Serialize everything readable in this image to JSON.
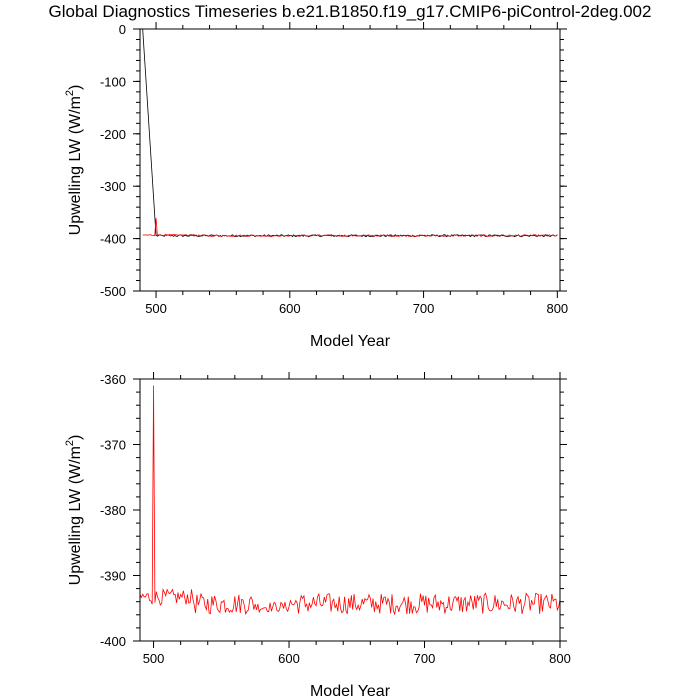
{
  "title": "Global Diagnostics Timeseries b.e21.B1850.f19_g17.CMIP6-piControl-2deg.002",
  "colors": {
    "series_black": "#000000",
    "series_red": "#ff0000",
    "axes": "#000000"
  },
  "chart_data": [
    {
      "type": "line",
      "title": "",
      "xlabel": "Model Year",
      "ylabel_main": "Upwelling LW (W/m",
      "ylabel_sup": "2",
      "ylabel_close": ")",
      "xlim": [
        488,
        802
      ],
      "ylim": [
        -500,
        0
      ],
      "xticks": [
        500,
        600,
        700,
        800
      ],
      "yticks": [
        0,
        -100,
        -200,
        -300,
        -400,
        -500
      ],
      "x_tick_labels": [
        "500",
        "600",
        "700",
        "800"
      ],
      "y_tick_labels": [
        "0",
        "-100",
        "-200",
        "-300",
        "-400",
        "-500"
      ],
      "series": [
        {
          "color": "#000000",
          "start_year": 490,
          "start_value": 0,
          "pulse_year": 500,
          "pulse_value": -395,
          "baseline": -394.5,
          "noise": 2.0
        },
        {
          "color": "#ff0000",
          "start_year": 490,
          "start_value": -393.5,
          "spike_year": 500,
          "spike_value": -361,
          "baseline": -394.3,
          "noise": 1.6
        }
      ]
    },
    {
      "type": "line",
      "title": "",
      "xlabel": "Model Year",
      "ylabel_main": "Upwelling LW (W/m",
      "ylabel_sup": "2",
      "ylabel_close": ")",
      "xlim": [
        490,
        800
      ],
      "ylim": [
        -400,
        -360
      ],
      "xticks": [
        500,
        600,
        700,
        800
      ],
      "yticks": [
        -360,
        -370,
        -380,
        -390,
        -400
      ],
      "x_tick_labels": [
        "500",
        "600",
        "700",
        "800"
      ],
      "y_tick_labels": [
        "-360",
        "-370",
        "-380",
        "-390",
        "-400"
      ],
      "series": [
        {
          "color": "#ff0000",
          "start_year": 490,
          "start_value": -393.5,
          "spike_year": 500,
          "spike_value": -361,
          "baseline": -394.3,
          "noise": 1.6
        }
      ]
    }
  ]
}
